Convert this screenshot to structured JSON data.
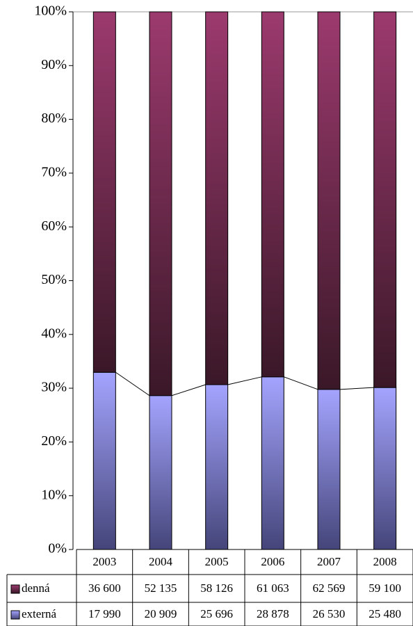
{
  "chart_data": {
    "type": "bar",
    "stacked_percent": true,
    "categories": [
      "2003",
      "2004",
      "2005",
      "2006",
      "2007",
      "2008"
    ],
    "series": [
      {
        "name": "denná",
        "color": "#993366",
        "values": [
          36600,
          52135,
          58126,
          61063,
          62569,
          59100
        ],
        "value_labels": [
          "36 600",
          "52 135",
          "58 126",
          "61 063",
          "62 569",
          "59 100"
        ]
      },
      {
        "name": "externá",
        "color": "#9999ff",
        "values": [
          17990,
          20909,
          25696,
          28878,
          26530,
          25480
        ],
        "value_labels": [
          "17 990",
          "20 909",
          "25 696",
          "28 878",
          "26 530",
          "25 480"
        ]
      }
    ],
    "ylim": [
      0,
      100
    ],
    "yticks": [
      {
        "value": 0,
        "label": "0%"
      },
      {
        "value": 10,
        "label": "10%"
      },
      {
        "value": 20,
        "label": "20%"
      },
      {
        "value": 30,
        "label": "30%"
      },
      {
        "value": 40,
        "label": "40%"
      },
      {
        "value": 50,
        "label": "50%"
      },
      {
        "value": 60,
        "label": "60%"
      },
      {
        "value": 70,
        "label": "70%"
      },
      {
        "value": 80,
        "label": "80%"
      },
      {
        "value": 90,
        "label": "90%"
      },
      {
        "value": 100,
        "label": "100%"
      }
    ]
  }
}
